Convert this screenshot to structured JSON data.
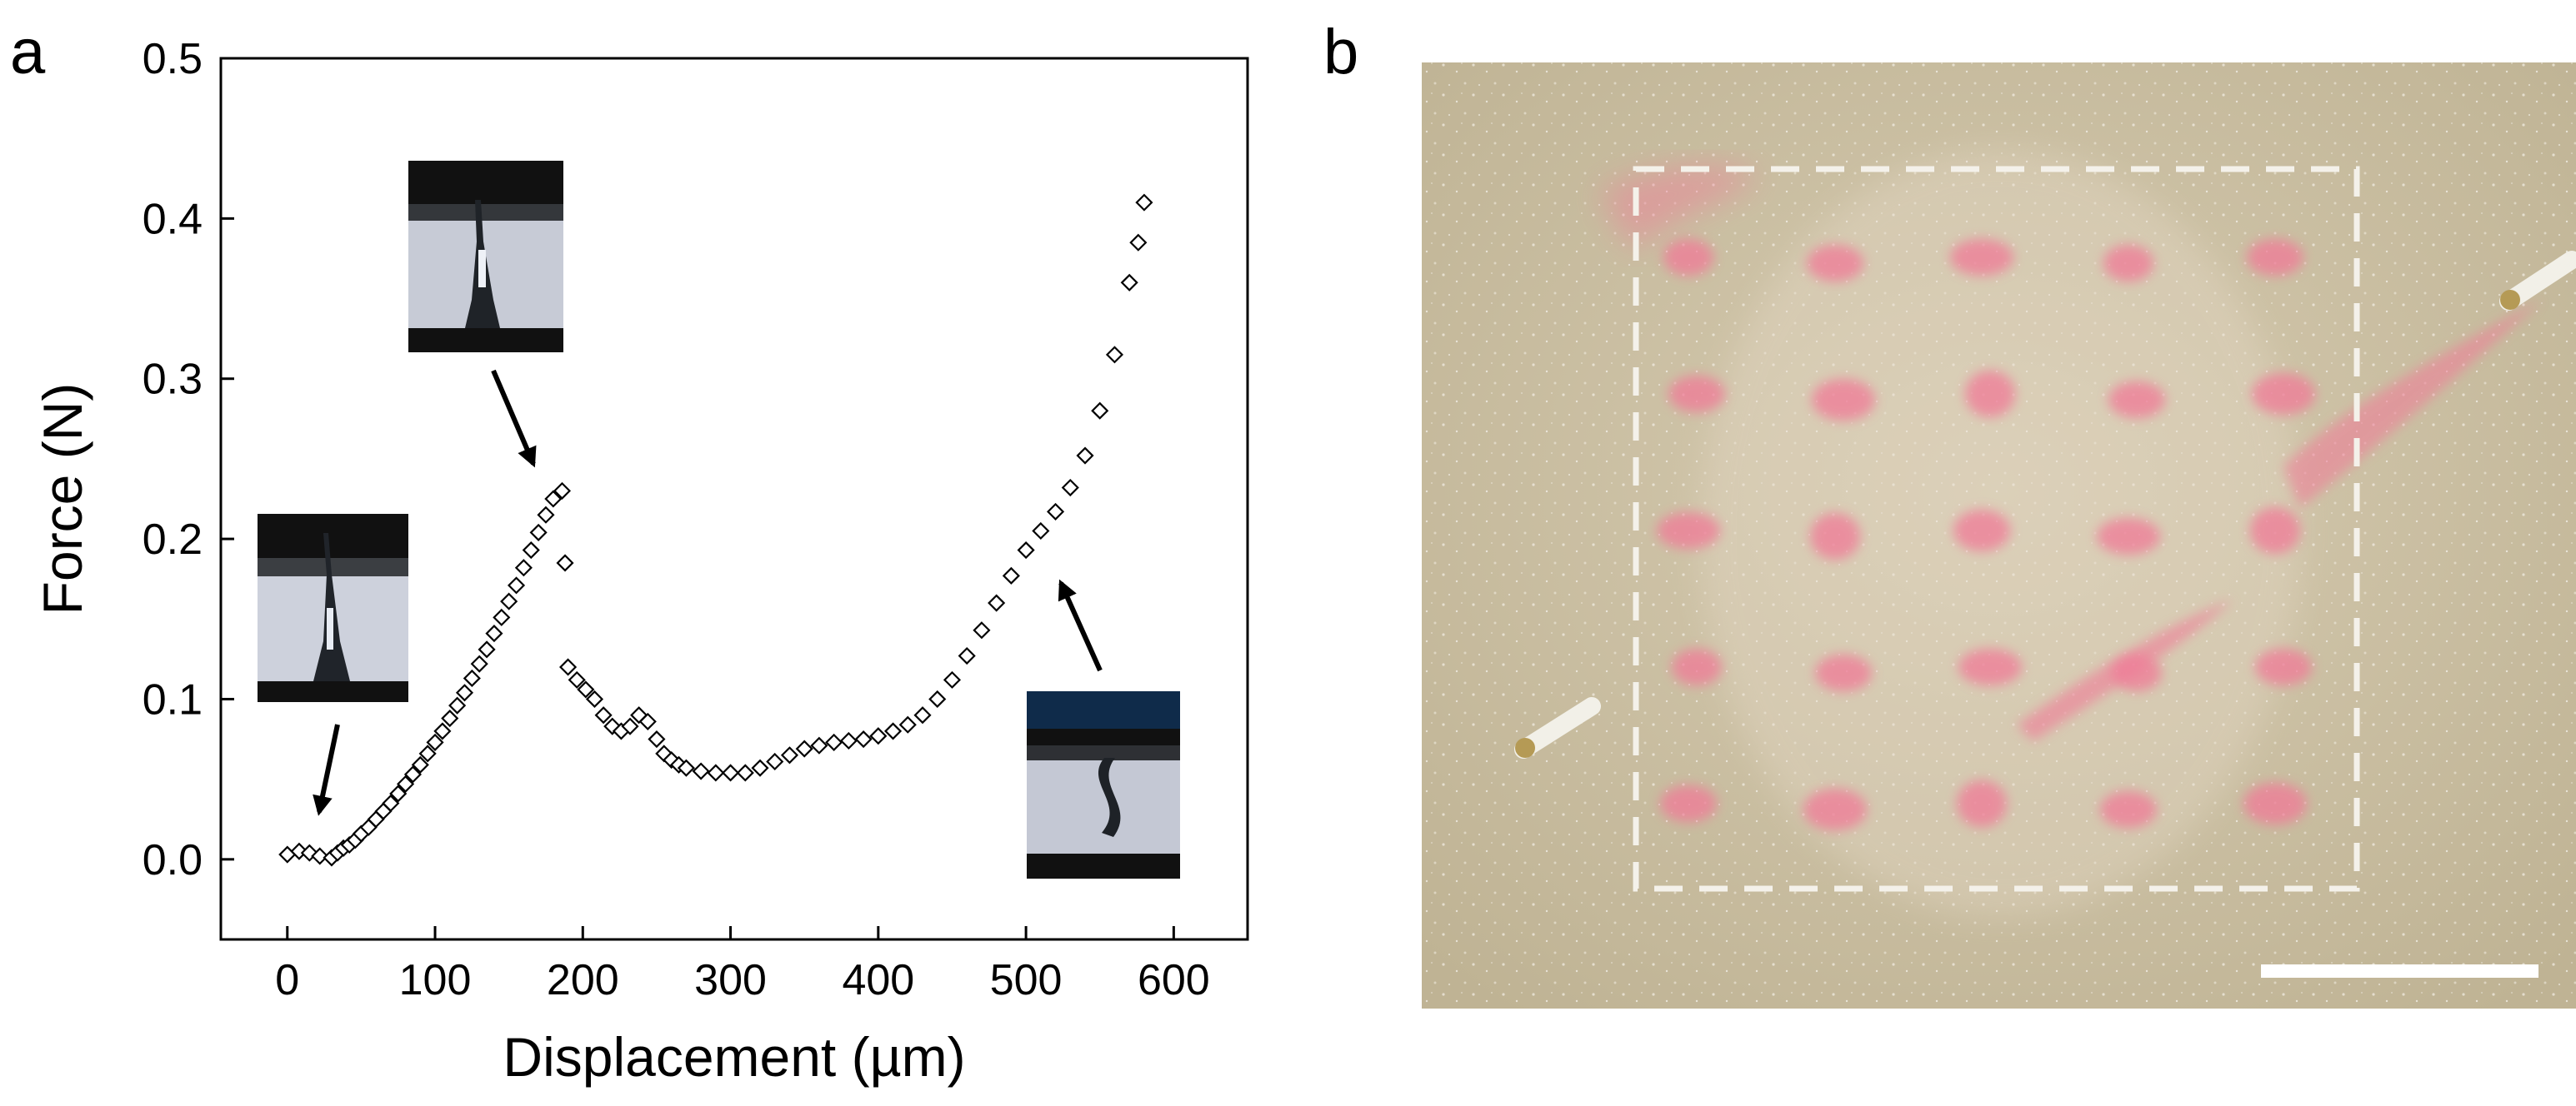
{
  "panels": {
    "a": "a",
    "b": "b"
  },
  "chart_data": {
    "type": "scatter",
    "xlabel": "Displacement (µm)",
    "ylabel": "Force (N)",
    "xlim": [
      -45,
      650
    ],
    "ylim": [
      -0.05,
      0.5
    ],
    "xticks": [
      "0",
      "100",
      "200",
      "300",
      "400",
      "500",
      "600"
    ],
    "yticks": [
      "0.0",
      "0.1",
      "0.2",
      "0.3",
      "0.4",
      "0.5"
    ],
    "marker": "open-diamond",
    "grid": false,
    "insets": 4,
    "points": [
      [
        0,
        0.003
      ],
      [
        8,
        0.005
      ],
      [
        15,
        0.004
      ],
      [
        22,
        0.002
      ],
      [
        30,
        0.001
      ],
      [
        34,
        0.004
      ],
      [
        38,
        0.007
      ],
      [
        42,
        0.009
      ],
      [
        46,
        0.012
      ],
      [
        50,
        0.016
      ],
      [
        55,
        0.02
      ],
      [
        60,
        0.025
      ],
      [
        65,
        0.03
      ],
      [
        70,
        0.035
      ],
      [
        75,
        0.041
      ],
      [
        80,
        0.047
      ],
      [
        85,
        0.053
      ],
      [
        90,
        0.059
      ],
      [
        95,
        0.066
      ],
      [
        100,
        0.073
      ],
      [
        105,
        0.08
      ],
      [
        110,
        0.088
      ],
      [
        115,
        0.096
      ],
      [
        120,
        0.104
      ],
      [
        125,
        0.113
      ],
      [
        130,
        0.122
      ],
      [
        135,
        0.131
      ],
      [
        140,
        0.141
      ],
      [
        145,
        0.151
      ],
      [
        150,
        0.161
      ],
      [
        155,
        0.171
      ],
      [
        160,
        0.182
      ],
      [
        165,
        0.193
      ],
      [
        170,
        0.204
      ],
      [
        175,
        0.215
      ],
      [
        180,
        0.225
      ],
      [
        186,
        0.23
      ],
      [
        188,
        0.185
      ],
      [
        190,
        0.12
      ],
      [
        196,
        0.112
      ],
      [
        202,
        0.106
      ],
      [
        208,
        0.1
      ],
      [
        214,
        0.09
      ],
      [
        220,
        0.083
      ],
      [
        226,
        0.08
      ],
      [
        232,
        0.083
      ],
      [
        238,
        0.09
      ],
      [
        244,
        0.086
      ],
      [
        250,
        0.075
      ],
      [
        255,
        0.066
      ],
      [
        260,
        0.062
      ],
      [
        265,
        0.059
      ],
      [
        270,
        0.057
      ],
      [
        280,
        0.055
      ],
      [
        290,
        0.054
      ],
      [
        300,
        0.054
      ],
      [
        310,
        0.054
      ],
      [
        320,
        0.057
      ],
      [
        330,
        0.061
      ],
      [
        340,
        0.065
      ],
      [
        350,
        0.069
      ],
      [
        360,
        0.071
      ],
      [
        370,
        0.073
      ],
      [
        380,
        0.074
      ],
      [
        390,
        0.075
      ],
      [
        400,
        0.077
      ],
      [
        410,
        0.08
      ],
      [
        420,
        0.084
      ],
      [
        430,
        0.09
      ],
      [
        440,
        0.1
      ],
      [
        450,
        0.112
      ],
      [
        460,
        0.127
      ],
      [
        470,
        0.143
      ],
      [
        480,
        0.16
      ],
      [
        490,
        0.177
      ],
      [
        500,
        0.193
      ],
      [
        510,
        0.205
      ],
      [
        520,
        0.217
      ],
      [
        530,
        0.232
      ],
      [
        540,
        0.252
      ],
      [
        550,
        0.28
      ],
      [
        560,
        0.315
      ],
      [
        570,
        0.36
      ],
      [
        576,
        0.385
      ],
      [
        580,
        0.41
      ]
    ]
  },
  "photo": {
    "background": "#cec2a8",
    "stain_color": "#f07a97",
    "dashed_box_color": "#f4f1ea",
    "scale_bar_color": "#ffffff",
    "spot_grid": "5x5"
  }
}
